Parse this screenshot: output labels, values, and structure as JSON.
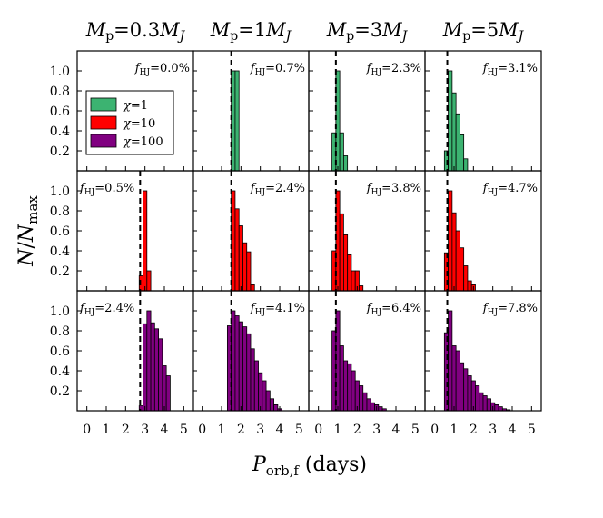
{
  "chart_data": {
    "type": "bar",
    "title": "",
    "xlabel": "P_orb,f (days)",
    "ylabel": "N/N_max",
    "xlim": [
      -0.5,
      5.5
    ],
    "ylim": [
      0,
      1.2
    ],
    "xticks": [
      "0",
      "1",
      "2",
      "3",
      "4",
      "5"
    ],
    "yticks": [
      "0.2",
      "0.4",
      "0.6",
      "0.8",
      "1.0"
    ],
    "bin_width": 0.2,
    "columns": [
      {
        "label": "M_p=0.3M_J",
        "mass": "0.3"
      },
      {
        "label": "M_p=1M_J",
        "mass": "1"
      },
      {
        "label": "M_p=3M_J",
        "mass": "3"
      },
      {
        "label": "M_p=5M_J",
        "mass": "5"
      }
    ],
    "rows": [
      {
        "chi": "1",
        "color": "#3cb371"
      },
      {
        "chi": "10",
        "color": "#ff0000"
      },
      {
        "chi": "100",
        "color": "#800080"
      }
    ],
    "legend": [
      {
        "label": "χ=1",
        "color": "#3cb371"
      },
      {
        "label": "χ=10",
        "color": "#ff0000"
      },
      {
        "label": "χ=100",
        "color": "#800080"
      }
    ],
    "panels": [
      {
        "row": 0,
        "col": 0,
        "fhj": "f_HJ=0.0%",
        "fhj_value": "0.0%",
        "dashed_x": null,
        "bins": []
      },
      {
        "row": 0,
        "col": 1,
        "fhj": "f_HJ=0.7%",
        "fhj_value": "0.7%",
        "dashed_x": 1.5,
        "bins": [
          {
            "x": 1.5,
            "v": 1.0
          },
          {
            "x": 1.7,
            "v": 1.0
          }
        ]
      },
      {
        "row": 0,
        "col": 2,
        "fhj": "f_HJ=2.3%",
        "fhj_value": "2.3%",
        "dashed_x": 0.9,
        "bins": [
          {
            "x": 0.7,
            "v": 0.38
          },
          {
            "x": 0.9,
            "v": 1.0
          },
          {
            "x": 1.1,
            "v": 0.38
          },
          {
            "x": 1.3,
            "v": 0.15
          }
        ]
      },
      {
        "row": 0,
        "col": 3,
        "fhj": "f_HJ=3.1%",
        "fhj_value": "3.1%",
        "dashed_x": 0.65,
        "bins": [
          {
            "x": 0.5,
            "v": 0.2
          },
          {
            "x": 0.7,
            "v": 1.0
          },
          {
            "x": 0.9,
            "v": 0.78
          },
          {
            "x": 1.1,
            "v": 0.57
          },
          {
            "x": 1.3,
            "v": 0.36
          },
          {
            "x": 1.5,
            "v": 0.12
          }
        ]
      },
      {
        "row": 1,
        "col": 0,
        "fhj": "f_HJ=0.5%",
        "fhj_value": "0.5%",
        "dashed_x": 2.75,
        "bins": [
          {
            "x": 2.7,
            "v": 0.15
          },
          {
            "x": 2.9,
            "v": 1.0
          },
          {
            "x": 3.1,
            "v": 0.2
          }
        ]
      },
      {
        "row": 1,
        "col": 1,
        "fhj": "f_HJ=2.4%",
        "fhj_value": "2.4%",
        "dashed_x": 1.5,
        "bins": [
          {
            "x": 1.5,
            "v": 1.0
          },
          {
            "x": 1.7,
            "v": 0.82
          },
          {
            "x": 1.9,
            "v": 0.65
          },
          {
            "x": 2.1,
            "v": 0.48
          },
          {
            "x": 2.3,
            "v": 0.39
          },
          {
            "x": 2.5,
            "v": 0.06
          }
        ]
      },
      {
        "row": 1,
        "col": 2,
        "fhj": "f_HJ=3.8%",
        "fhj_value": "3.8%",
        "dashed_x": 0.9,
        "bins": [
          {
            "x": 0.7,
            "v": 0.4
          },
          {
            "x": 0.9,
            "v": 1.0
          },
          {
            "x": 1.1,
            "v": 0.77
          },
          {
            "x": 1.3,
            "v": 0.56
          },
          {
            "x": 1.5,
            "v": 0.36
          },
          {
            "x": 1.7,
            "v": 0.2
          },
          {
            "x": 1.9,
            "v": 0.2
          },
          {
            "x": 2.1,
            "v": 0.05
          }
        ]
      },
      {
        "row": 1,
        "col": 3,
        "fhj": "f_HJ=4.7%",
        "fhj_value": "4.7%",
        "dashed_x": 0.65,
        "bins": [
          {
            "x": 0.5,
            "v": 0.38
          },
          {
            "x": 0.7,
            "v": 1.0
          },
          {
            "x": 0.9,
            "v": 0.78
          },
          {
            "x": 1.1,
            "v": 0.6
          },
          {
            "x": 1.3,
            "v": 0.43
          },
          {
            "x": 1.5,
            "v": 0.25
          },
          {
            "x": 1.7,
            "v": 0.1
          },
          {
            "x": 1.9,
            "v": 0.06
          }
        ]
      },
      {
        "row": 2,
        "col": 0,
        "fhj": "f_HJ=2.4%",
        "fhj_value": "2.4%",
        "dashed_x": 2.75,
        "bins": [
          {
            "x": 2.7,
            "v": 0.05
          },
          {
            "x": 2.9,
            "v": 0.87
          },
          {
            "x": 3.1,
            "v": 1.0
          },
          {
            "x": 3.3,
            "v": 0.88
          },
          {
            "x": 3.5,
            "v": 0.82
          },
          {
            "x": 3.7,
            "v": 0.72
          },
          {
            "x": 3.9,
            "v": 0.45
          },
          {
            "x": 4.1,
            "v": 0.35
          }
        ]
      },
      {
        "row": 2,
        "col": 1,
        "fhj": "f_HJ=4.1%",
        "fhj_value": "4.1%",
        "dashed_x": 1.5,
        "bins": [
          {
            "x": 1.3,
            "v": 0.85
          },
          {
            "x": 1.5,
            "v": 1.0
          },
          {
            "x": 1.7,
            "v": 0.95
          },
          {
            "x": 1.9,
            "v": 0.89
          },
          {
            "x": 2.1,
            "v": 0.84
          },
          {
            "x": 2.3,
            "v": 0.77
          },
          {
            "x": 2.5,
            "v": 0.62
          },
          {
            "x": 2.7,
            "v": 0.5
          },
          {
            "x": 2.9,
            "v": 0.38
          },
          {
            "x": 3.1,
            "v": 0.3
          },
          {
            "x": 3.3,
            "v": 0.2
          },
          {
            "x": 3.5,
            "v": 0.12
          },
          {
            "x": 3.7,
            "v": 0.06
          },
          {
            "x": 3.9,
            "v": 0.02
          }
        ]
      },
      {
        "row": 2,
        "col": 2,
        "fhj": "f_HJ=6.4%",
        "fhj_value": "6.4%",
        "dashed_x": 0.9,
        "bins": [
          {
            "x": 0.7,
            "v": 0.8
          },
          {
            "x": 0.9,
            "v": 1.0
          },
          {
            "x": 1.1,
            "v": 0.65
          },
          {
            "x": 1.3,
            "v": 0.5
          },
          {
            "x": 1.5,
            "v": 0.47
          },
          {
            "x": 1.7,
            "v": 0.4
          },
          {
            "x": 1.9,
            "v": 0.3
          },
          {
            "x": 2.1,
            "v": 0.25
          },
          {
            "x": 2.3,
            "v": 0.18
          },
          {
            "x": 2.5,
            "v": 0.12
          },
          {
            "x": 2.7,
            "v": 0.08
          },
          {
            "x": 2.9,
            "v": 0.06
          },
          {
            "x": 3.1,
            "v": 0.04
          },
          {
            "x": 3.3,
            "v": 0.02
          }
        ]
      },
      {
        "row": 2,
        "col": 3,
        "fhj": "f_HJ=7.8%",
        "fhj_value": "7.8%",
        "dashed_x": 0.65,
        "bins": [
          {
            "x": 0.5,
            "v": 0.78
          },
          {
            "x": 0.7,
            "v": 1.0
          },
          {
            "x": 0.9,
            "v": 0.65
          },
          {
            "x": 1.1,
            "v": 0.6
          },
          {
            "x": 1.3,
            "v": 0.48
          },
          {
            "x": 1.5,
            "v": 0.42
          },
          {
            "x": 1.7,
            "v": 0.35
          },
          {
            "x": 1.9,
            "v": 0.3
          },
          {
            "x": 2.1,
            "v": 0.25
          },
          {
            "x": 2.3,
            "v": 0.18
          },
          {
            "x": 2.5,
            "v": 0.15
          },
          {
            "x": 2.7,
            "v": 0.12
          },
          {
            "x": 2.9,
            "v": 0.08
          },
          {
            "x": 3.1,
            "v": 0.06
          },
          {
            "x": 3.3,
            "v": 0.04
          },
          {
            "x": 3.5,
            "v": 0.02
          },
          {
            "x": 3.7,
            "v": 0.01
          }
        ]
      }
    ]
  }
}
